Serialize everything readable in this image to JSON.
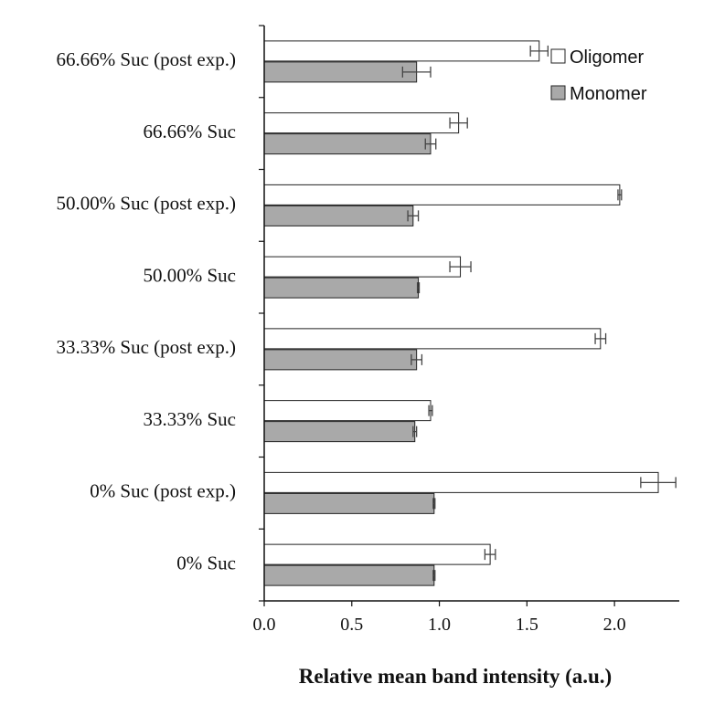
{
  "chart_data": {
    "type": "bar",
    "orientation": "horizontal",
    "title": "",
    "xlabel": "Relative mean band intensity (a.u.)",
    "ylabel": "",
    "xlim": [
      0,
      2.37
    ],
    "xticks": [
      "0.0",
      "0.5",
      "1.0",
      "1.5",
      "2.0"
    ],
    "categories": [
      "66.66% Suc (post exp.)",
      "66.66% Suc",
      "50.00% Suc (post exp.)",
      "50.00% Suc",
      "33.33% Suc (post exp.)",
      "33.33% Suc",
      "0% Suc (post exp.)",
      "0% Suc"
    ],
    "series": [
      {
        "name": "Oligomer",
        "color": "#ffffff",
        "values": [
          1.57,
          1.11,
          2.03,
          1.12,
          1.92,
          0.95,
          2.25,
          1.29
        ],
        "errors": [
          0.05,
          0.05,
          0.01,
          0.06,
          0.03,
          0.01,
          0.1,
          0.03
        ]
      },
      {
        "name": "Monomer",
        "color": "#a9a9a9",
        "values": [
          0.87,
          0.95,
          0.85,
          0.88,
          0.87,
          0.86,
          0.97,
          0.97
        ],
        "errors": [
          0.08,
          0.03,
          0.03,
          0.005,
          0.03,
          0.01,
          0.005,
          0.005
        ]
      }
    ],
    "grid": false,
    "legend": "top-right"
  }
}
